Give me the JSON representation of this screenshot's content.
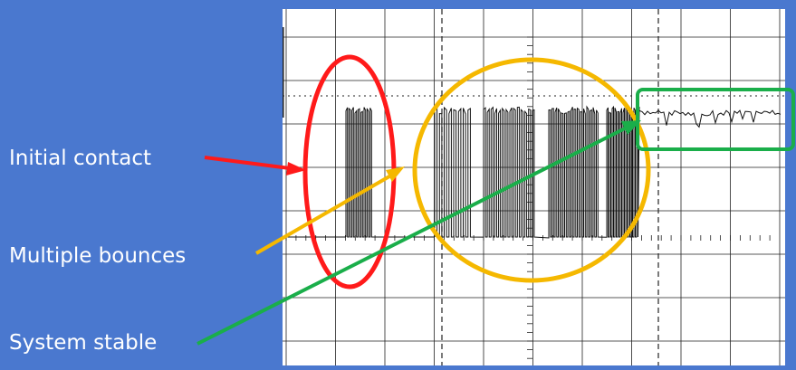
{
  "labels": {
    "initial_contact": "Initial contact",
    "multiple_bounces": "Multiple bounces",
    "system_stable": "System stable"
  },
  "colors": {
    "background": "#4a78cf",
    "initial_contact": "#ff1a1a",
    "multiple_bounces": "#f5b800",
    "system_stable": "#1aae4a",
    "trace": "#111111",
    "grid": "#222222"
  }
}
